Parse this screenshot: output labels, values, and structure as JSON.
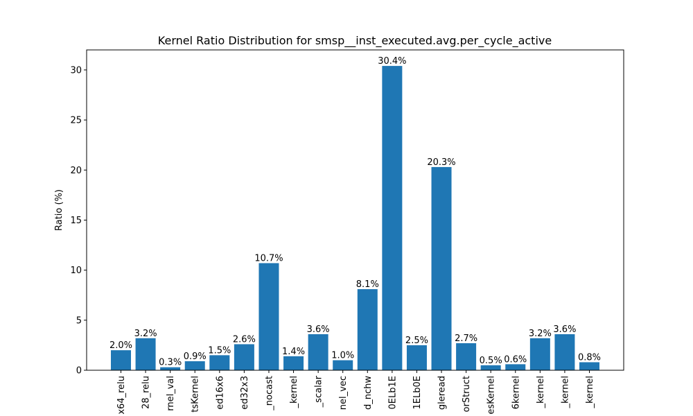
{
  "chart_data": {
    "type": "bar",
    "title": "Kernel Ratio Distribution for smsp__inst_executed.avg.per_cycle_active",
    "xlabel": "",
    "ylabel": "Ratio (%)",
    "ylim": [
      0,
      32
    ],
    "yticks": [
      0,
      5,
      10,
      15,
      20,
      25,
      30
    ],
    "grid": false,
    "bar_color": "#1f77b4",
    "categories": [
      "x64_relu",
      "28_relu",
      "rnel_val",
      "tsKernel",
      "ed16x6",
      "ed32x3",
      "_nocast",
      "_kernel",
      "_scalar",
      "nel_vec",
      "d_nchw",
      "0ELb1E",
      "1ELb0E",
      "gleread",
      "orStruct",
      "esKernel",
      "6kernel",
      "_kernel",
      "_kernel",
      "_kernel"
    ],
    "values": [
      2.0,
      3.2,
      0.3,
      0.9,
      1.5,
      2.6,
      10.7,
      1.4,
      3.6,
      1.0,
      8.1,
      30.4,
      2.5,
      20.3,
      2.7,
      0.5,
      0.6,
      3.2,
      3.6,
      0.8
    ],
    "data_labels": [
      "2.0%",
      "3.2%",
      "0.3%",
      "0.9%",
      "1.5%",
      "2.6%",
      "10.7%",
      "1.4%",
      "3.6%",
      "1.0%",
      "8.1%",
      "30.4%",
      "2.5%",
      "20.3%",
      "2.7%",
      "0.5%",
      "0.6%",
      "3.2%",
      "3.6%",
      "0.8%"
    ]
  }
}
